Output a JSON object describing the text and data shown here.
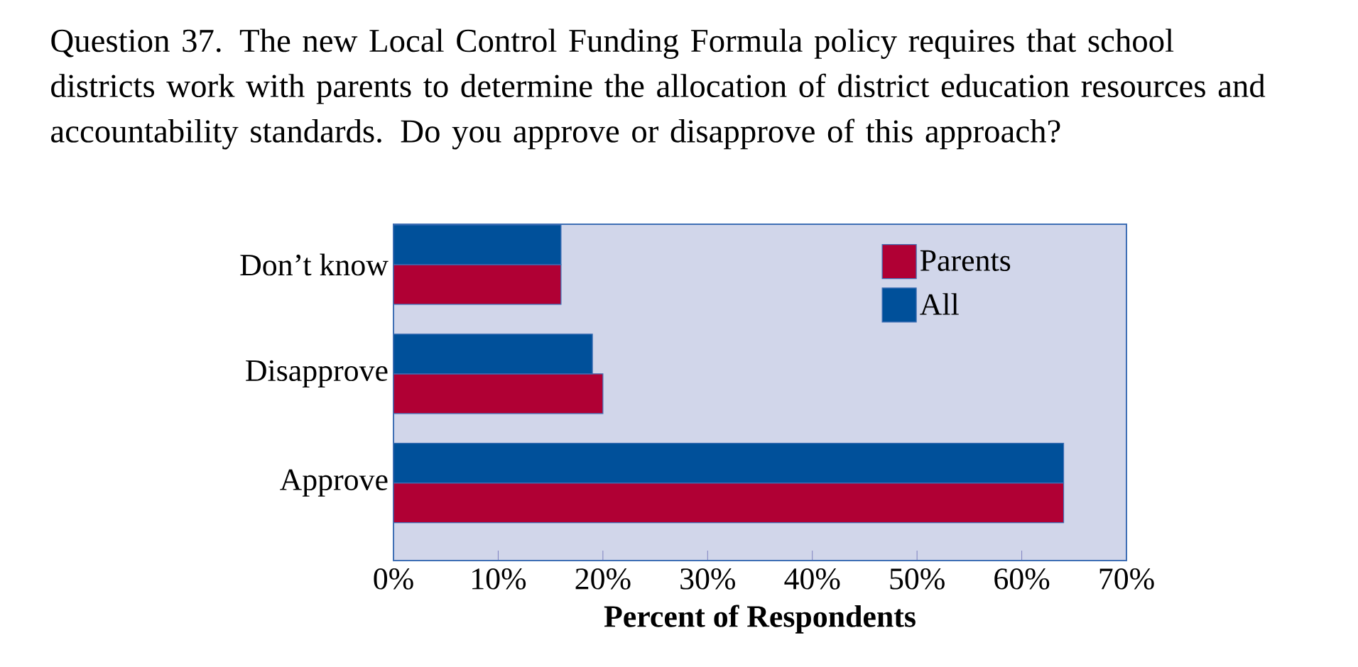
{
  "chart_data": {
    "type": "bar",
    "orientation": "horizontal",
    "title": "Question 37. The new Local Control Funding Formula policy requires that school districts work with parents to determine the allocation of district education resources and accountability standards. Do you approve or disapprove of this approach?",
    "xlabel": "Percent of Respondents",
    "categories": [
      "Don’t know",
      "Disapprove",
      "Approve"
    ],
    "series": [
      {
        "name": "Parents",
        "color": "#b00034",
        "values": [
          16,
          20,
          64
        ]
      },
      {
        "name": "All",
        "color": "#00509a",
        "values": [
          16,
          19,
          64
        ]
      }
    ],
    "xlim": [
      0,
      70
    ],
    "xticks": [
      {
        "value": 0,
        "label": "0%"
      },
      {
        "value": 10,
        "label": "10%"
      },
      {
        "value": 20,
        "label": "20%"
      },
      {
        "value": 30,
        "label": "30%"
      },
      {
        "value": 40,
        "label": "40%"
      },
      {
        "value": 50,
        "label": "50%"
      },
      {
        "value": 60,
        "label": "60%"
      },
      {
        "value": 70,
        "label": "70%"
      }
    ],
    "legend": "top right",
    "grid": false
  }
}
